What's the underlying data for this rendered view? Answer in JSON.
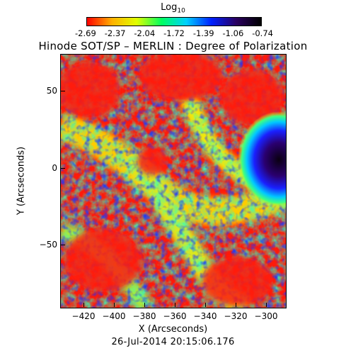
{
  "colorbar": {
    "title": "Log",
    "title_subscript": "10",
    "ticks": [
      "-2.69",
      "-2.37",
      "-2.04",
      "-1.72",
      "-1.39",
      "-1.06",
      "-0.74"
    ],
    "colors": [
      "#ff0000",
      "#ffb000",
      "#e0ff00",
      "#00ff60",
      "#00d0ff",
      "#0020ff",
      "#2a0060",
      "#000000"
    ]
  },
  "title": "Hinode SOT/SP – MERLIN : Degree of Polarization",
  "axes": {
    "x_label": "X (Arcseconds)",
    "y_label": "Y (Arcseconds)",
    "x_ticks": [
      "−420",
      "−400",
      "−380",
      "−360",
      "−340",
      "−320",
      "−300"
    ],
    "y_ticks": [
      "50",
      "0",
      "−50"
    ]
  },
  "timestamp": "26-Jul-2014 20:15:06.176"
}
